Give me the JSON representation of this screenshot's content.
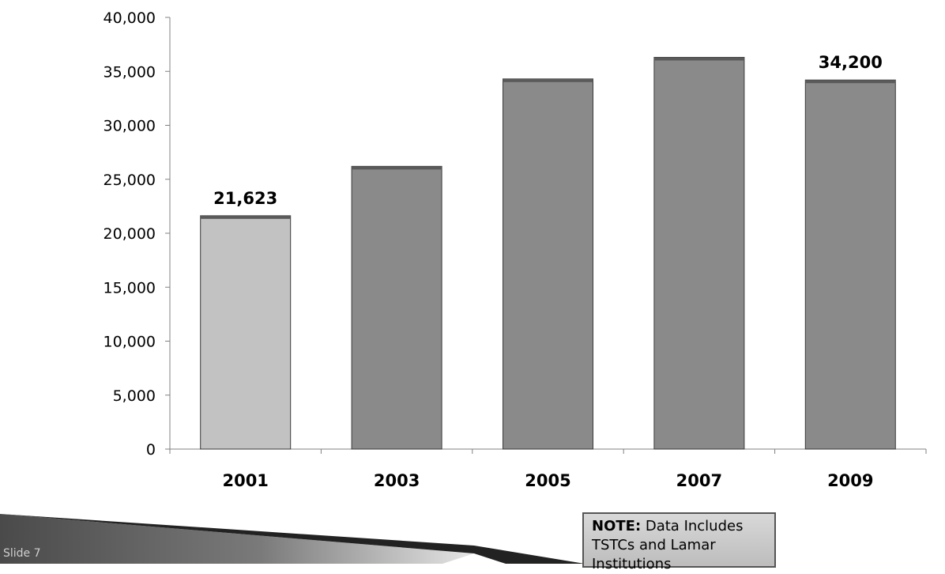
{
  "chart_data": {
    "type": "bar",
    "categories": [
      "2001",
      "2003",
      "2005",
      "2007",
      "2009"
    ],
    "values": [
      21623,
      26200,
      34300,
      36300,
      34200
    ],
    "data_labels": [
      {
        "index": 0,
        "text": "21,623"
      },
      {
        "index": 4,
        "text": "34,200"
      }
    ],
    "yticks": [
      "0",
      "5,000",
      "10,000",
      "15,000",
      "20,000",
      "25,000",
      "30,000",
      "35,000",
      "40,000"
    ],
    "ylim": [
      0,
      40000
    ],
    "grid": false,
    "colors": [
      "#c2c2c2",
      "#8a8a8a",
      "#8a8a8a",
      "#8a8a8a",
      "#8a8a8a"
    ]
  },
  "note": {
    "prefix": "NOTE:",
    "text": " Data Includes TSTCs and Lamar Institutions"
  },
  "slide_label": "Slide 7"
}
